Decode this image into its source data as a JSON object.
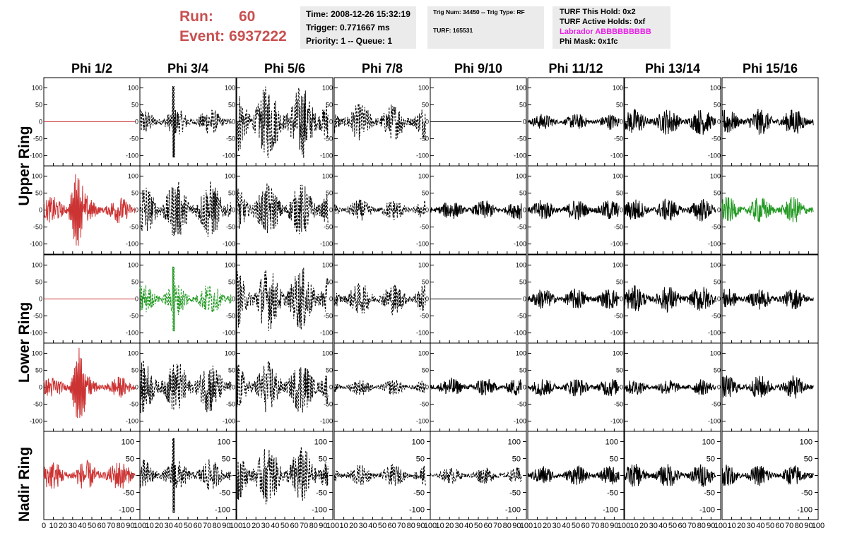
{
  "header": {
    "run_label": "Run:",
    "run_value": "60",
    "event_label": "Event:",
    "event_value": "6937222",
    "time": "Time: 2008-12-26 15:32:19",
    "trigger": "Trigger: 0.771667 ms",
    "priority": "Priority: 1 -- Queue: 1",
    "trig_num": "Trig Num: 34450 -- Trig Type: RF",
    "turf": "TURF: 165531",
    "turf_this_hold": "TURF This Hold: 0x2",
    "turf_active_holds": "TURF Active Holds: 0xf",
    "labrador": "Labrador ABBBBBBBBB",
    "phi_mask": "Phi Mask: 0x1fc"
  },
  "columns": [
    "Phi 1/2",
    "Phi 3/4",
    "Phi 5/6",
    "Phi 7/8",
    "Phi 9/10",
    "Phi 11/12",
    "Phi 13/14",
    "Phi 15/16"
  ],
  "ring_labels": [
    "Upper Ring",
    "Lower Ring",
    "Nadir Ring"
  ],
  "colors": {
    "red": "#cc3333",
    "green": "#229922",
    "black": "#000000",
    "title": "#c85050",
    "magenta": "#e81ee8",
    "box_bg": "#ebebeb"
  },
  "axes": {
    "y_ticks": [
      "100",
      "50",
      "0",
      "-50",
      "-100"
    ],
    "y_tick_values": [
      100,
      50,
      0,
      -50,
      -100
    ],
    "y_range": [
      -130,
      130
    ],
    "x_range": [
      0,
      100
    ],
    "x_tick_labels": [
      "0",
      "10",
      "20",
      "30",
      "40",
      "50",
      "60",
      "70",
      "80",
      "90",
      "100"
    ]
  },
  "chart_data": {
    "type": "line",
    "rows": [
      {
        "panels": [
          {
            "color": "red",
            "style": "flat",
            "amp": 0
          },
          {
            "color": "black",
            "style": "dashed",
            "amp": 25,
            "spike": 105
          },
          {
            "color": "black",
            "style": "dashed",
            "amp": 70
          },
          {
            "color": "black",
            "style": "dashed",
            "amp": 35
          },
          {
            "color": "black",
            "style": "flat",
            "amp": 0
          },
          {
            "color": "black",
            "style": "solid",
            "amp": 15
          },
          {
            "color": "black",
            "style": "solid",
            "amp": 25
          },
          {
            "color": "black",
            "style": "solid",
            "amp": 25
          }
        ]
      },
      {
        "panels": [
          {
            "color": "red",
            "style": "solid",
            "amp": 25,
            "burst": 110
          },
          {
            "color": "black",
            "style": "dashed",
            "amp": 55
          },
          {
            "color": "black",
            "style": "dashed",
            "amp": 50
          },
          {
            "color": "black",
            "style": "dashed",
            "amp": 20
          },
          {
            "color": "black",
            "style": "solid",
            "amp": 18
          },
          {
            "color": "black",
            "style": "solid",
            "amp": 20
          },
          {
            "color": "black",
            "style": "solid",
            "amp": 22
          },
          {
            "color": "green",
            "style": "solid",
            "amp": 25
          }
        ]
      },
      {
        "panels": [
          {
            "color": "red",
            "style": "flat",
            "amp": 0
          },
          {
            "color": "green",
            "style": "dashed",
            "amp": 30,
            "spike": 95
          },
          {
            "color": "black",
            "style": "dashed",
            "amp": 60
          },
          {
            "color": "black",
            "style": "dashed",
            "amp": 30
          },
          {
            "color": "black",
            "style": "flat",
            "amp": 0
          },
          {
            "color": "black",
            "style": "solid",
            "amp": 20
          },
          {
            "color": "black",
            "style": "solid",
            "amp": 25
          },
          {
            "color": "black",
            "style": "solid",
            "amp": 20
          }
        ]
      },
      {
        "panels": [
          {
            "color": "red",
            "style": "solid",
            "amp": 20,
            "burst": 100
          },
          {
            "color": "black",
            "style": "dashed",
            "amp": 50
          },
          {
            "color": "black",
            "style": "dashed",
            "amp": 50
          },
          {
            "color": "black",
            "style": "dashed",
            "amp": 15
          },
          {
            "color": "black",
            "style": "solid",
            "amp": 18
          },
          {
            "color": "black",
            "style": "solid",
            "amp": 18
          },
          {
            "color": "black",
            "style": "solid",
            "amp": 15
          },
          {
            "color": "black",
            "style": "solid",
            "amp": 22
          }
        ]
      },
      {
        "panels": [
          {
            "color": "red",
            "style": "solid",
            "amp": 28
          },
          {
            "color": "black",
            "style": "dashed",
            "amp": 30,
            "spike": 110
          },
          {
            "color": "black",
            "style": "dashed",
            "amp": 55
          },
          {
            "color": "black",
            "style": "dashed",
            "amp": 20
          },
          {
            "color": "black",
            "style": "dashed",
            "amp": 15
          },
          {
            "color": "black",
            "style": "solid",
            "amp": 18
          },
          {
            "color": "black",
            "style": "solid",
            "amp": 22
          },
          {
            "color": "black",
            "style": "solid",
            "amp": 20
          }
        ]
      }
    ]
  }
}
